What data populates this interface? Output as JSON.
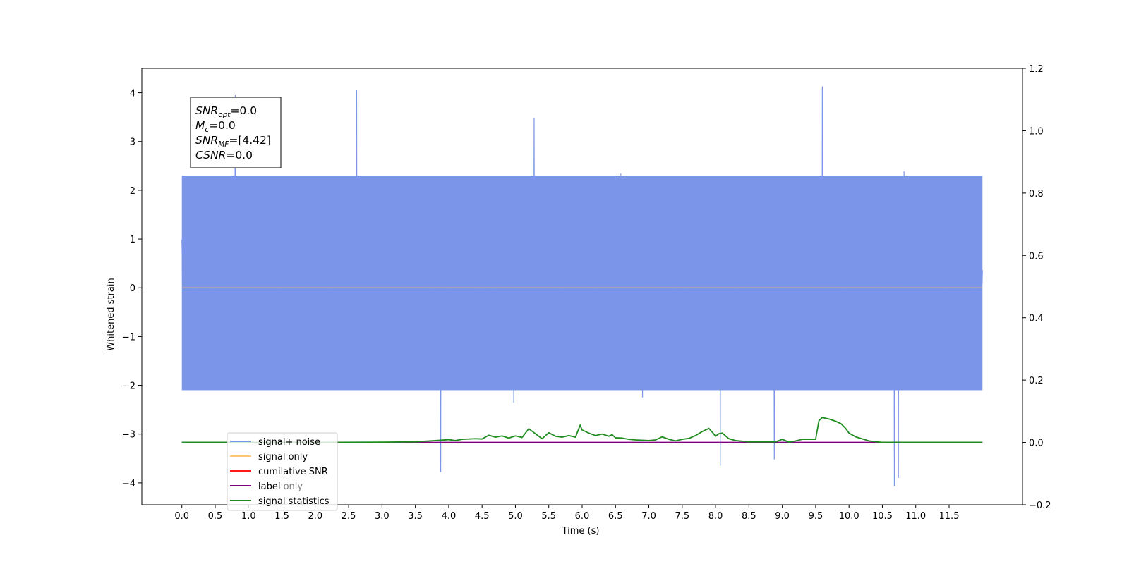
{
  "chart_data": {
    "type": "line",
    "xlabel": "Time (s)",
    "ylabel": "Whitened strain",
    "xlim": [
      -0.6,
      12.6
    ],
    "ylim": [
      -4.45,
      4.5
    ],
    "y2lim": [
      -0.2,
      1.2
    ],
    "x_ticks": [
      "0.0",
      "0.5",
      "1.0",
      "1.5",
      "2.0",
      "2.5",
      "3.0",
      "3.5",
      "4.0",
      "4.5",
      "5.0",
      "5.5",
      "6.0",
      "6.5",
      "7.0",
      "7.5",
      "8.0",
      "8.5",
      "9.0",
      "9.5",
      "10.0",
      "10.5",
      "11.0",
      "11.5"
    ],
    "y_ticks": [
      "4",
      "3",
      "2",
      "1",
      "0",
      "−1",
      "−2",
      "−3",
      "−4"
    ],
    "y2_ticks": [
      "1.2",
      "1.0",
      "0.8",
      "0.6",
      "0.4",
      "0.2",
      "0.0",
      "−0.2"
    ],
    "info_box": [
      {
        "base": "SNR",
        "sub": "opt",
        "value": "=0.0"
      },
      {
        "base": "M",
        "sub": "c",
        "value": "=0.0"
      },
      {
        "base": "SNR",
        "sub": "MF",
        "value": "=[4.42]"
      },
      {
        "base": "CSNR",
        "sub": "",
        "value": "=0.0"
      }
    ],
    "legend": {
      "placement": "lower-left",
      "entries": [
        {
          "label": "signal+ noise",
          "color": "#7b96e8"
        },
        {
          "label": "signal only",
          "color": "#ffc777"
        },
        {
          "label": "cumilative SNR",
          "color": "#ff1a1a"
        },
        {
          "label": "label",
          "color": "#800080"
        },
        {
          "label": "signal statistics",
          "color": "#1f8c1f"
        }
      ],
      "hidden_label": "label only"
    },
    "series": [
      {
        "name": "signal+ noise",
        "axis": "left",
        "color": "#7b96e8",
        "x_range": [
          0.0,
          12.0
        ],
        "band": [
          -2.1,
          2.3
        ],
        "peaks": [
          {
            "x": 0.8,
            "y": 3.95
          },
          {
            "x": 2.62,
            "y": 4.05
          },
          {
            "x": 5.28,
            "y": 3.48
          },
          {
            "x": 9.6,
            "y": 4.13
          },
          {
            "x": 3.88,
            "y": -3.78
          },
          {
            "x": 8.07,
            "y": -3.65
          },
          {
            "x": 10.68,
            "y": -4.07
          },
          {
            "x": 10.74,
            "y": -3.9
          },
          {
            "x": 8.88,
            "y": -3.52
          }
        ]
      },
      {
        "name": "signal only",
        "axis": "left",
        "color": "#f2b27c",
        "x": [
          0.0,
          12.0
        ],
        "y": [
          0.0,
          0.0
        ]
      },
      {
        "name": "label",
        "axis": "right",
        "color": "#800080",
        "x": [
          0.0,
          12.0
        ],
        "y": [
          0.0,
          0.0
        ]
      },
      {
        "name": "signal statistics",
        "axis": "right",
        "color": "#1f8c1f",
        "x": [
          0.0,
          1.0,
          2.0,
          3.0,
          3.5,
          3.8,
          4.0,
          4.1,
          4.2,
          4.4,
          4.5,
          4.6,
          4.7,
          4.8,
          4.9,
          5.0,
          5.1,
          5.2,
          5.3,
          5.4,
          5.5,
          5.6,
          5.7,
          5.8,
          5.9,
          5.97,
          6.0,
          6.1,
          6.2,
          6.3,
          6.4,
          6.45,
          6.5,
          6.6,
          6.7,
          6.8,
          7.0,
          7.1,
          7.2,
          7.3,
          7.4,
          7.5,
          7.6,
          7.7,
          7.8,
          7.9,
          7.95,
          8.0,
          8.05,
          8.1,
          8.2,
          8.3,
          8.5,
          8.9,
          9.0,
          9.1,
          9.2,
          9.3,
          9.4,
          9.5,
          9.52,
          9.55,
          9.6,
          9.7,
          9.8,
          9.88,
          9.95,
          10.0,
          10.1,
          10.3,
          10.5,
          11.0,
          12.0
        ],
        "y": [
          0.0,
          0.0,
          0.0,
          0.001,
          0.002,
          0.006,
          0.009,
          0.006,
          0.01,
          0.012,
          0.011,
          0.023,
          0.017,
          0.021,
          0.014,
          0.021,
          0.016,
          0.044,
          0.028,
          0.012,
          0.031,
          0.02,
          0.017,
          0.022,
          0.017,
          0.055,
          0.04,
          0.03,
          0.022,
          0.027,
          0.02,
          0.025,
          0.015,
          0.014,
          0.01,
          0.008,
          0.006,
          0.008,
          0.018,
          0.01,
          0.005,
          0.01,
          0.013,
          0.022,
          0.035,
          0.045,
          0.033,
          0.02,
          0.028,
          0.03,
          0.012,
          0.006,
          0.002,
          0.002,
          0.01,
          0.001,
          0.005,
          0.01,
          0.01,
          0.01,
          0.035,
          0.07,
          0.08,
          0.075,
          0.068,
          0.06,
          0.045,
          0.03,
          0.018,
          0.005,
          0.0,
          0.0,
          0.0
        ]
      }
    ]
  }
}
